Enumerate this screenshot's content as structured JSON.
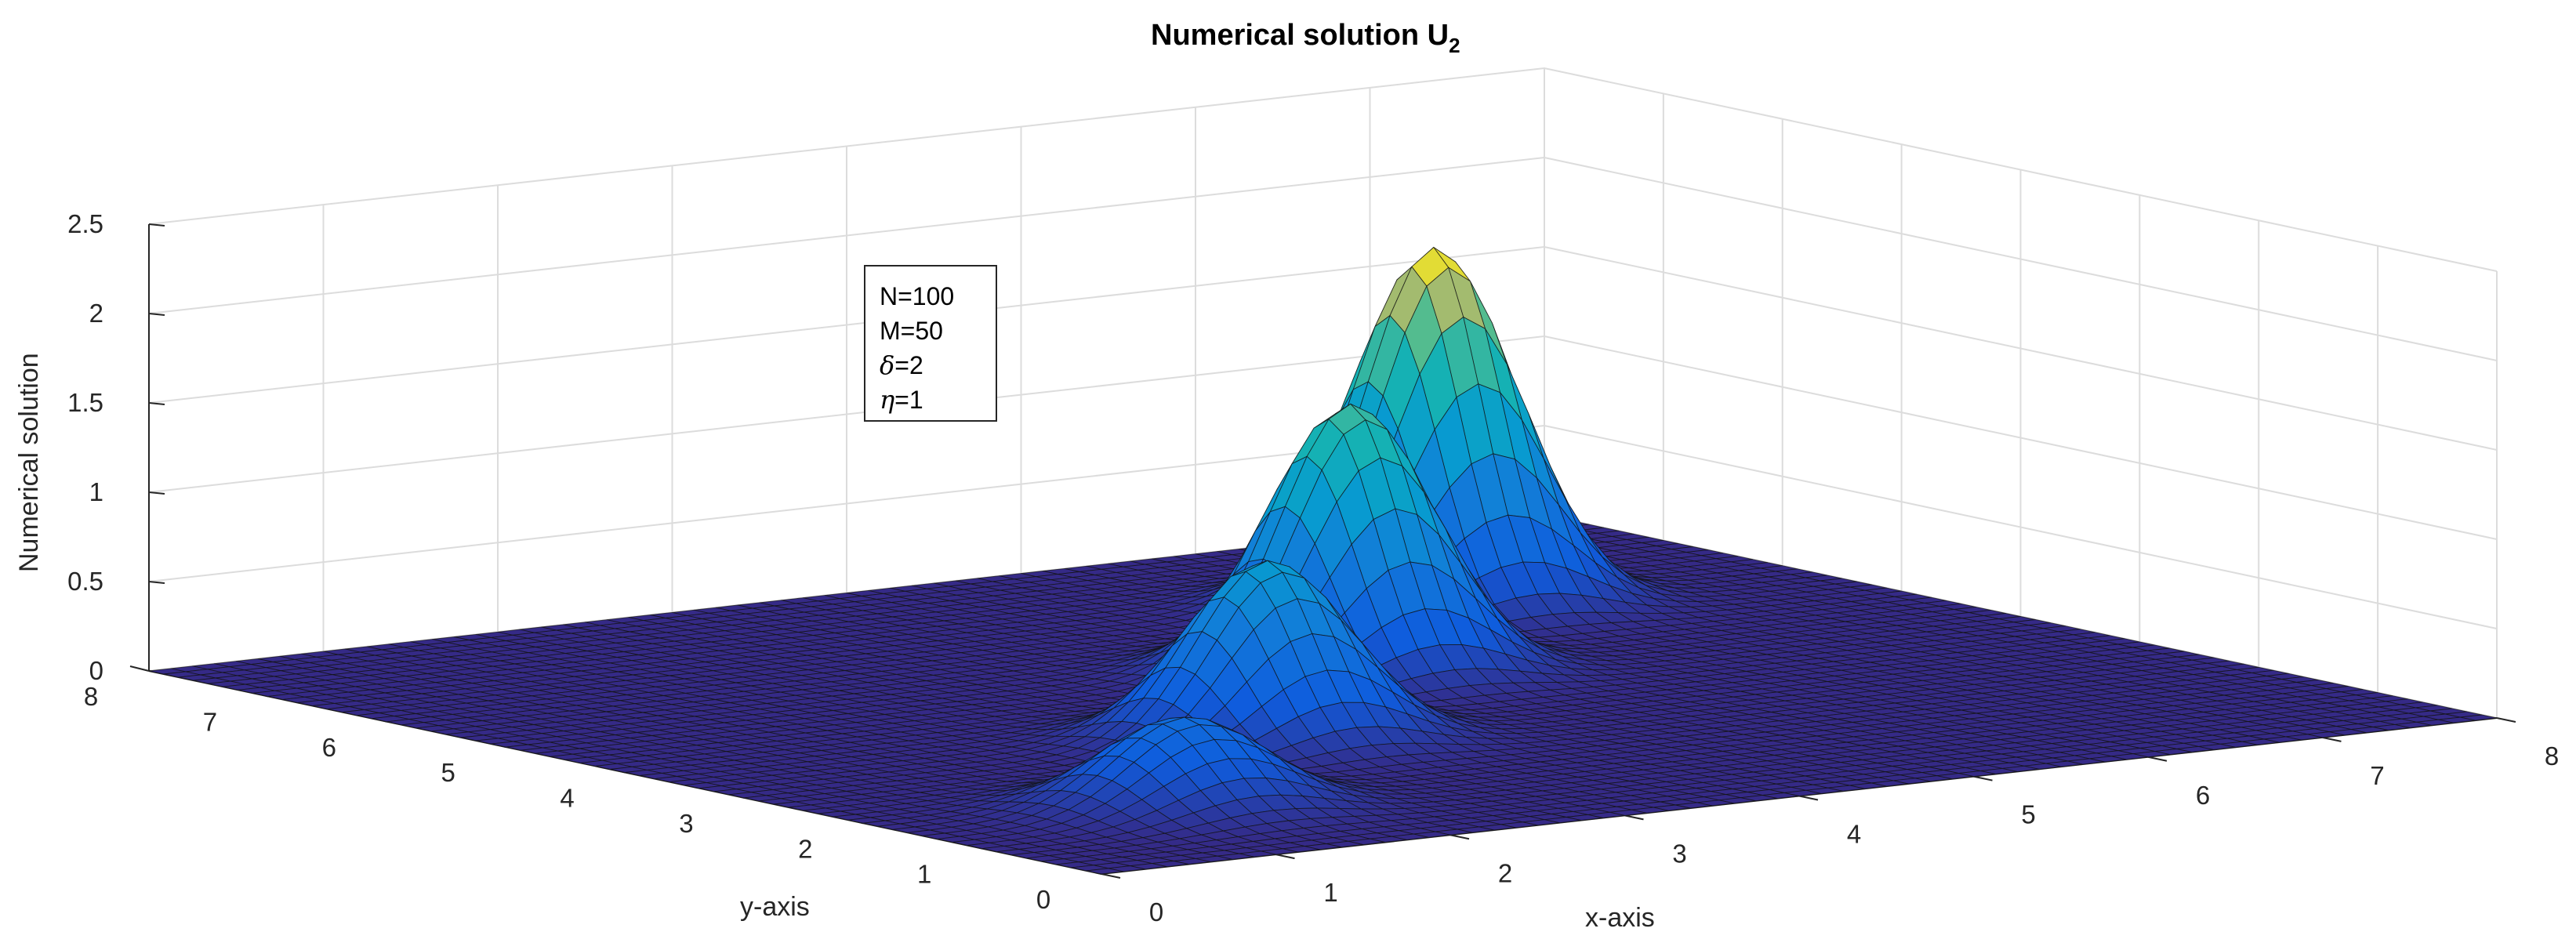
{
  "chart_data": {
    "type": "surface",
    "title_main": "Numerical solution U",
    "title_sub": "2",
    "xlabel": "x-axis",
    "ylabel": "y-axis",
    "zlabel": "Numerical solution",
    "xlim": [
      0,
      8
    ],
    "ylim": [
      0,
      8
    ],
    "zlim": [
      0,
      2.5
    ],
    "xticks": [
      "0",
      "1",
      "2",
      "3",
      "4",
      "5",
      "6",
      "7",
      "8"
    ],
    "yticks": [
      "0",
      "1",
      "2",
      "3",
      "4",
      "5",
      "6",
      "7",
      "8"
    ],
    "zticks": [
      "0",
      "0.5",
      "1",
      "1.5",
      "2",
      "2.5"
    ],
    "grid": true,
    "colormap": "parula",
    "peaks": [
      {
        "x": 1.5,
        "y": 1.5,
        "height": 0.5
      },
      {
        "x": 3.0,
        "y": 3.0,
        "height": 1.0
      },
      {
        "x": 4.5,
        "y": 4.5,
        "height": 1.5
      },
      {
        "x": 6.0,
        "y": 6.0,
        "height": 2.0
      }
    ],
    "peak_width": 0.4,
    "legend": {
      "lines": [
        {
          "symbol": "",
          "text": "N=100"
        },
        {
          "symbol": "",
          "text": "M=50"
        },
        {
          "symbol": "δ",
          "text": "=2"
        },
        {
          "symbol": "η",
          "text": "=1"
        }
      ]
    }
  }
}
